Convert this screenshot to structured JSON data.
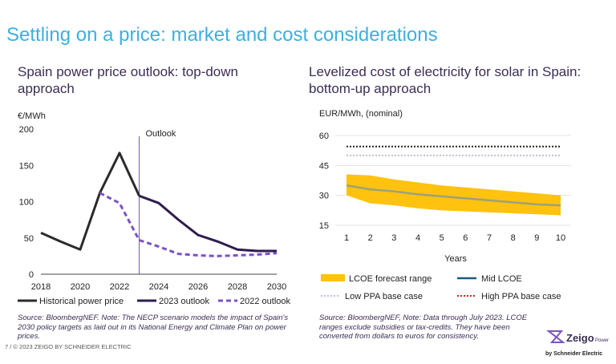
{
  "title": "Settling on a price: market and cost considerations",
  "left_subtitle": "Spain power price outlook: top-down approach",
  "right_subtitle": "Levelized cost of electricity for solar in Spain: bottom-up approach",
  "left_source": "Source: BloombergNEF. Note: The NECP scenario models the impact of Spain's 2030 policy targets as laid out in its National Energy and Climate Plan on power prices.",
  "right_source": "Source: BloombergNEF, Note: Data through July 2023. LCOE ranges exclude subsidies or tax-credits. They have been converted from dollars to euros for consistency.",
  "footer": "7  /  © 2023 ZEIGO BY SCHNEIDER ELECTRIC",
  "logo": {
    "brand": "Zeigo",
    "suffix": "Power",
    "by": "by Schneider Electric"
  },
  "chart_data": [
    {
      "type": "line",
      "ylabel": "€/MWh",
      "xlim": [
        2018,
        2030
      ],
      "ylim": [
        0,
        200
      ],
      "x_ticks": [
        "2018",
        "2020",
        "2022",
        "2024",
        "2026",
        "2028",
        "2030"
      ],
      "y_ticks": [
        "0",
        "50",
        "100",
        "150",
        "200"
      ],
      "annotation": "Outlook",
      "outlook_start": 2023,
      "legend_position": "bottom",
      "series": [
        {
          "name": "Historical power price",
          "color": "#2b2b2b",
          "style": "solid",
          "x": [
            2018,
            2019,
            2020,
            2021,
            2022,
            2023
          ],
          "y": [
            57,
            45,
            34,
            112,
            167,
            108
          ]
        },
        {
          "name": "2023 outlook",
          "color": "#2f1c4d",
          "style": "solid",
          "x": [
            2023,
            2024,
            2025,
            2026,
            2027,
            2028,
            2029,
            2030
          ],
          "y": [
            108,
            98,
            75,
            54,
            45,
            34,
            32,
            32
          ]
        },
        {
          "name": "2022 outlook",
          "color": "#7b52c4",
          "style": "dashed",
          "x": [
            2021,
            2022,
            2023,
            2024,
            2025,
            2026,
            2027,
            2028,
            2029,
            2030
          ],
          "y": [
            112,
            98,
            47,
            38,
            28,
            26,
            25,
            26,
            27,
            29
          ]
        }
      ]
    },
    {
      "type": "area",
      "ylabel": "EUR/MWh, (nominal)",
      "xlabel": "Years",
      "xlim": [
        1,
        10
      ],
      "ylim": [
        15,
        60
      ],
      "x_ticks": [
        "1",
        "2",
        "3",
        "4",
        "5",
        "6",
        "7",
        "8",
        "9",
        "10"
      ],
      "y_ticks": [
        "15",
        "30",
        "45",
        "60"
      ],
      "grid": true,
      "legend_position": "bottom",
      "x": [
        1,
        2,
        3,
        4,
        5,
        6,
        7,
        8,
        9,
        10
      ],
      "range": {
        "name": "LCOE forecast range",
        "color": "#ffc20e",
        "low": [
          30,
          26,
          25,
          23.5,
          22.5,
          22,
          21.5,
          21,
          20.5,
          20
        ],
        "high": [
          40.5,
          40,
          38,
          36.5,
          35,
          34,
          33,
          32,
          31,
          30
        ]
      },
      "series": [
        {
          "name": "Mid LCOE",
          "color": "#9aa27a",
          "legend_color": "#1f5a7a",
          "style": "solid",
          "y": [
            35,
            33,
            32,
            30.5,
            29.5,
            28.5,
            27.5,
            26.5,
            25.5,
            25
          ]
        },
        {
          "name": "Low PPA base case",
          "color": "#c0c0d8",
          "style": "dotted",
          "y": [
            50,
            50,
            50,
            50,
            50,
            50,
            50,
            50,
            50,
            50
          ]
        },
        {
          "name": "High PPA base case",
          "color": "#222222",
          "legend_color": "#e0201b",
          "style": "dotted",
          "y": [
            54.5,
            54.5,
            54.5,
            54.5,
            54.5,
            54.5,
            54.5,
            54.5,
            54.5,
            54.5
          ]
        }
      ]
    }
  ]
}
